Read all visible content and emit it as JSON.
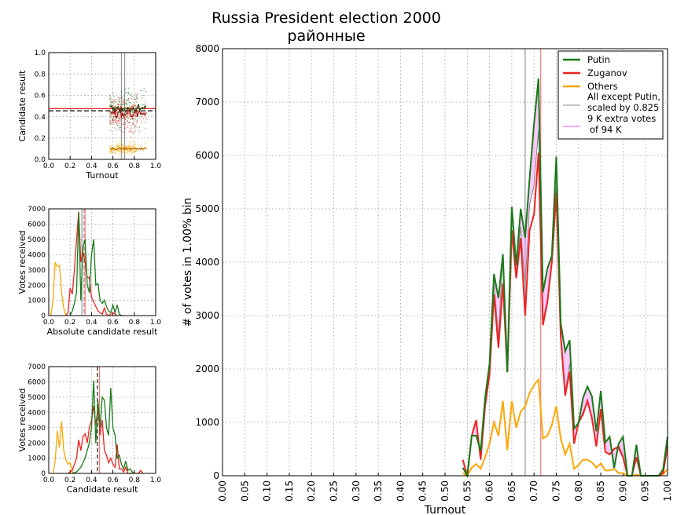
{
  "title": "Russia President election 2000",
  "subtitle": "районные",
  "colors": {
    "putin": "#1a7a1a",
    "zuganov": "#ee2222",
    "others": "#ffa500",
    "gray": "#888888",
    "pink": "#ff88ff"
  },
  "chart_data": [
    {
      "id": "main",
      "type": "line",
      "xlabel": "Turnout",
      "ylabel": "# of votes in 1.00% bin",
      "xlim": [
        0,
        1
      ],
      "ylim": [
        0,
        8000
      ],
      "xticks": [
        "0.00",
        "0.05",
        "0.10",
        "0.15",
        "0.20",
        "0.25",
        "0.30",
        "0.35",
        "0.40",
        "0.45",
        "0.50",
        "0.55",
        "0.60",
        "0.65",
        "0.70",
        "0.75",
        "0.80",
        "0.85",
        "0.90",
        "0.95",
        "1.00"
      ],
      "yticks": [
        "0",
        "1000",
        "2000",
        "3000",
        "4000",
        "5000",
        "6000",
        "7000",
        "8000"
      ],
      "grid": true,
      "legend_position": "top-right",
      "legend": [
        "Putin",
        "Zuganov",
        "Others",
        "All except Putin, scaled by 0.825",
        "9 K extra votes of 94 K"
      ],
      "gray_scale": 0.825,
      "vlines": [
        {
          "x": 0.68,
          "color": "gray"
        },
        {
          "x": 0.715,
          "color": "red"
        }
      ],
      "x": [
        0.54,
        0.55,
        0.56,
        0.57,
        0.58,
        0.59,
        0.6,
        0.61,
        0.62,
        0.63,
        0.64,
        0.65,
        0.66,
        0.67,
        0.68,
        0.69,
        0.7,
        0.71,
        0.72,
        0.73,
        0.74,
        0.75,
        0.76,
        0.77,
        0.78,
        0.79,
        0.8,
        0.81,
        0.82,
        0.83,
        0.84,
        0.85,
        0.86,
        0.87,
        0.88,
        0.89,
        0.9,
        0.91,
        0.92,
        0.93,
        0.94,
        0.95,
        0.96,
        0.97,
        0.98,
        0.99,
        1.0
      ],
      "series": [
        {
          "name": "Putin",
          "color": "putin",
          "values": [
            150,
            0,
            750,
            750,
            460,
            1460,
            2100,
            3780,
            3330,
            4150,
            1940,
            5040,
            3940,
            5000,
            4460,
            5570,
            6600,
            7440,
            3440,
            3880,
            4120,
            5980,
            2860,
            2330,
            2540,
            880,
            990,
            1460,
            1670,
            1490,
            830,
            1590,
            620,
            730,
            150,
            600,
            730,
            0,
            0,
            580,
            0,
            0,
            0,
            0,
            0,
            120,
            730
          ]
        },
        {
          "name": "Zuganov",
          "color": "zuganov",
          "values": [
            300,
            0,
            750,
            1040,
            300,
            1300,
            1900,
            3400,
            2400,
            3600,
            1940,
            4600,
            3700,
            4450,
            3000,
            4600,
            4900,
            6050,
            2820,
            3250,
            4000,
            5300,
            2600,
            1500,
            1950,
            600,
            1000,
            1150,
            1400,
            1080,
            550,
            1250,
            450,
            400,
            500,
            550,
            350,
            0,
            0,
            350,
            0,
            0,
            0,
            0,
            0,
            50,
            550
          ]
        },
        {
          "name": "Others",
          "color": "others",
          "values": [
            50,
            0,
            150,
            220,
            130,
            350,
            600,
            1000,
            750,
            1400,
            480,
            1400,
            900,
            1200,
            1300,
            1550,
            1700,
            1800,
            700,
            750,
            950,
            1300,
            700,
            400,
            600,
            130,
            200,
            300,
            300,
            250,
            150,
            230,
            100,
            100,
            130,
            50,
            50,
            0,
            0,
            20,
            0,
            0,
            0,
            0,
            0,
            30,
            120
          ]
        }
      ]
    },
    {
      "id": "scatter",
      "type": "scatter",
      "xlabel": "Turnout",
      "ylabel": "Candidate result",
      "xlim": [
        0,
        1
      ],
      "ylim": [
        0,
        1
      ],
      "xticks": [
        "0.0",
        "0.2",
        "0.4",
        "0.6",
        "0.8",
        "1.0"
      ],
      "yticks": [
        "0.0",
        "0.2",
        "0.4",
        "0.6",
        "0.8",
        "1.0"
      ],
      "hlines": [
        {
          "y": 0.475,
          "color": "red"
        },
        {
          "y": 0.455,
          "color": "black",
          "dashed": true
        }
      ],
      "vlines": [
        {
          "x": 0.68,
          "color": "gray"
        },
        {
          "x": 0.71,
          "color": "gray"
        }
      ],
      "clouds": [
        {
          "name": "Putin",
          "color": "putin",
          "mean": 0.47,
          "spread": 0.14
        },
        {
          "name": "Zuganov",
          "color": "zuganov",
          "mean": 0.42,
          "spread": 0.14
        },
        {
          "name": "Others",
          "color": "others",
          "mean": 0.1,
          "spread": 0.04
        }
      ],
      "turnout_range": [
        0.57,
        0.92
      ]
    },
    {
      "id": "absolute",
      "type": "line",
      "xlabel": "Absolute candidate result",
      "ylabel": "Votes received",
      "xlim": [
        0,
        1
      ],
      "ylim": [
        0,
        7000
      ],
      "xticks": [
        "0.0",
        "0.2",
        "0.4",
        "0.6",
        "0.8",
        "1.0"
      ],
      "yticks": [
        "0",
        "1000",
        "2000",
        "3000",
        "4000",
        "5000",
        "6000",
        "7000"
      ],
      "vlines": [
        {
          "x": 0.31,
          "color": "gray"
        },
        {
          "x": 0.33,
          "color": "gray",
          "dashed": true
        },
        {
          "x": 0.34,
          "color": "red"
        }
      ],
      "series": [
        {
          "name": "Others",
          "color": "others",
          "x": [
            0.02,
            0.04,
            0.06,
            0.08,
            0.1,
            0.12,
            0.14,
            0.16
          ],
          "values": [
            0,
            1000,
            3500,
            3200,
            3300,
            1500,
            500,
            0
          ]
        },
        {
          "name": "Zuganov",
          "color": "zuganov",
          "x": [
            0.16,
            0.18,
            0.2,
            0.22,
            0.24,
            0.26,
            0.28,
            0.3,
            0.32,
            0.34,
            0.36,
            0.38,
            0.4,
            0.42,
            0.44,
            0.46,
            0.48,
            0.5,
            0.52,
            0.54,
            0.56,
            0.6,
            0.62,
            0.64
          ],
          "values": [
            0,
            200,
            1800,
            1400,
            3000,
            5000,
            6800,
            3500,
            4200,
            3500,
            2500,
            2500,
            1200,
            900,
            600,
            300,
            200,
            100,
            500,
            100,
            0,
            200,
            100,
            0
          ]
        },
        {
          "name": "Putin",
          "color": "putin",
          "x": [
            0.2,
            0.22,
            0.24,
            0.26,
            0.28,
            0.3,
            0.32,
            0.34,
            0.36,
            0.38,
            0.4,
            0.42,
            0.44,
            0.46,
            0.48,
            0.5,
            0.52,
            0.54,
            0.56,
            0.58,
            0.6,
            0.62,
            0.64,
            0.66,
            0.68
          ],
          "values": [
            0,
            300,
            800,
            1500,
            6800,
            1000,
            4500,
            5000,
            2000,
            1500,
            4000,
            5000,
            2000,
            2100,
            1000,
            800,
            1000,
            600,
            300,
            200,
            700,
            200,
            700,
            100,
            0
          ]
        }
      ]
    },
    {
      "id": "relative",
      "type": "line",
      "xlabel": "Candidate result",
      "ylabel": "Votes received",
      "xlim": [
        0,
        1
      ],
      "ylim": [
        0,
        7000
      ],
      "xticks": [
        "0.0",
        "0.2",
        "0.4",
        "0.6",
        "0.8",
        "1.0"
      ],
      "yticks": [
        "0",
        "1000",
        "2000",
        "3000",
        "4000",
        "5000",
        "6000",
        "7000"
      ],
      "vlines": [
        {
          "x": 0.455,
          "color": "black",
          "dashed": true
        },
        {
          "x": 0.475,
          "color": "red"
        }
      ],
      "series": [
        {
          "name": "Others",
          "color": "others",
          "x": [
            0.04,
            0.06,
            0.08,
            0.1,
            0.12,
            0.14,
            0.16,
            0.18,
            0.2,
            0.22,
            0.24
          ],
          "values": [
            0,
            800,
            2800,
            1700,
            3400,
            1500,
            900,
            600,
            700,
            100,
            0
          ]
        },
        {
          "name": "Zuganov",
          "color": "zuganov",
          "x": [
            0.18,
            0.22,
            0.26,
            0.28,
            0.3,
            0.32,
            0.34,
            0.36,
            0.38,
            0.4,
            0.42,
            0.44,
            0.46,
            0.48,
            0.5,
            0.52,
            0.54,
            0.56,
            0.58,
            0.6,
            0.62,
            0.64,
            0.66,
            0.68,
            0.7,
            0.72,
            0.74,
            0.84,
            0.86,
            0.88
          ],
          "values": [
            0,
            200,
            1000,
            2200,
            1500,
            2400,
            2600,
            2000,
            3000,
            3500,
            4400,
            3200,
            4300,
            2500,
            3500,
            1500,
            1200,
            700,
            1000,
            600,
            400,
            1900,
            300,
            300,
            100,
            400,
            0,
            0,
            200,
            0
          ]
        },
        {
          "name": "Putin",
          "color": "putin",
          "x": [
            0.22,
            0.26,
            0.3,
            0.34,
            0.38,
            0.4,
            0.42,
            0.44,
            0.46,
            0.48,
            0.5,
            0.52,
            0.54,
            0.56,
            0.58,
            0.6,
            0.62,
            0.64,
            0.66,
            0.68,
            0.7,
            0.72,
            0.74,
            0.76,
            0.78,
            0.8
          ],
          "values": [
            0,
            100,
            400,
            1000,
            2000,
            3000,
            6100,
            2000,
            4800,
            3000,
            5000,
            4800,
            3000,
            2500,
            5600,
            3000,
            2500,
            1000,
            1200,
            600,
            300,
            800,
            200,
            300,
            100,
            0
          ]
        }
      ]
    }
  ]
}
